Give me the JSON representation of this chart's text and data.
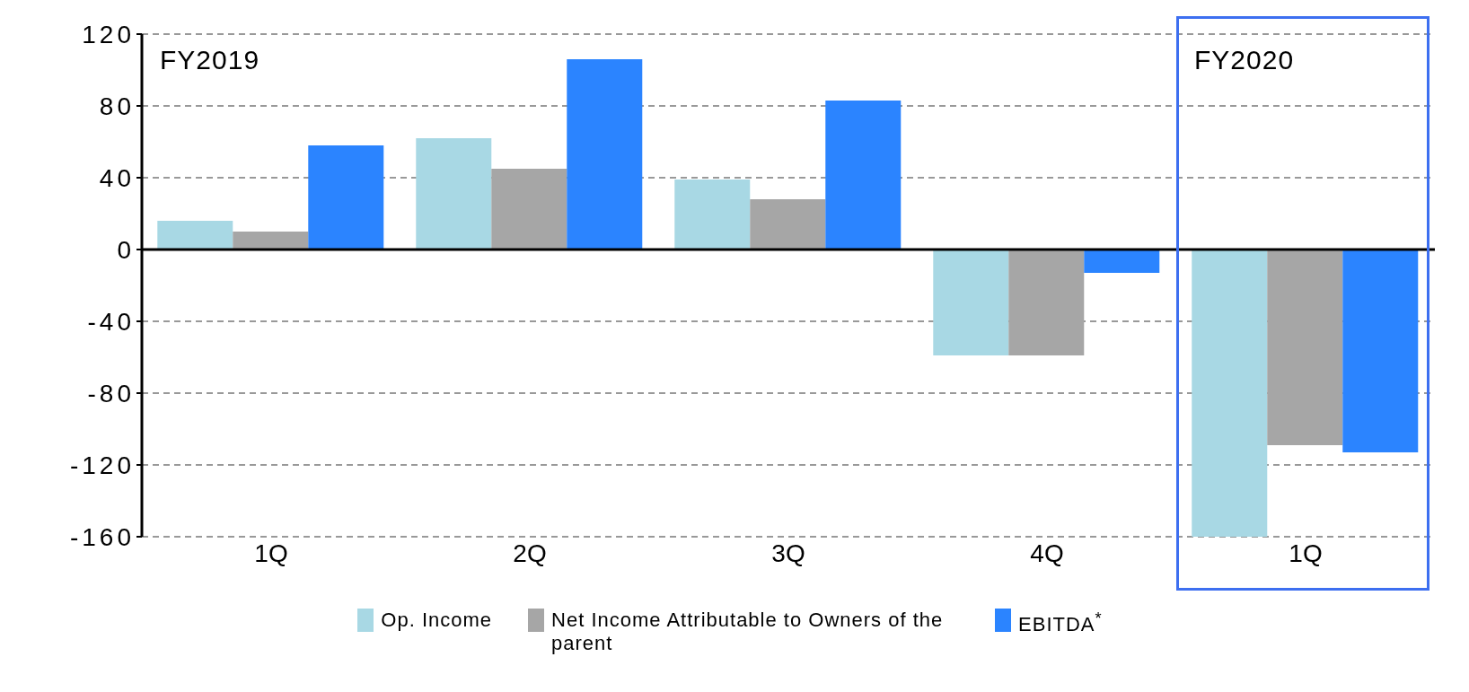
{
  "chart_data": {
    "type": "bar",
    "categories": [
      "1Q",
      "2Q",
      "3Q",
      "4Q",
      "1Q"
    ],
    "series": [
      {
        "name": "Op. Income",
        "color": "#a8d8e4",
        "values": [
          16,
          62,
          39,
          -59,
          -160
        ]
      },
      {
        "name": "Net Income Attributable to Owners of the parent",
        "color": "#a6a6a6",
        "values": [
          10,
          45,
          28,
          -59,
          -109
        ]
      },
      {
        "name": "EBITDA$^{*}$",
        "color": "#2b84ff",
        "values": [
          58,
          106,
          83,
          -13,
          -113
        ]
      }
    ],
    "ylim": [
      -160,
      120
    ],
    "yticks": [
      -160,
      -120,
      -80,
      -40,
      0,
      40,
      80,
      120
    ],
    "grid": "y",
    "legend": "bottom",
    "ref_lines": [
      {
        "axis": "y",
        "value": 0,
        "color": "#000000"
      }
    ],
    "annotations": [
      "FY2019",
      "FY2020"
    ]
  }
}
